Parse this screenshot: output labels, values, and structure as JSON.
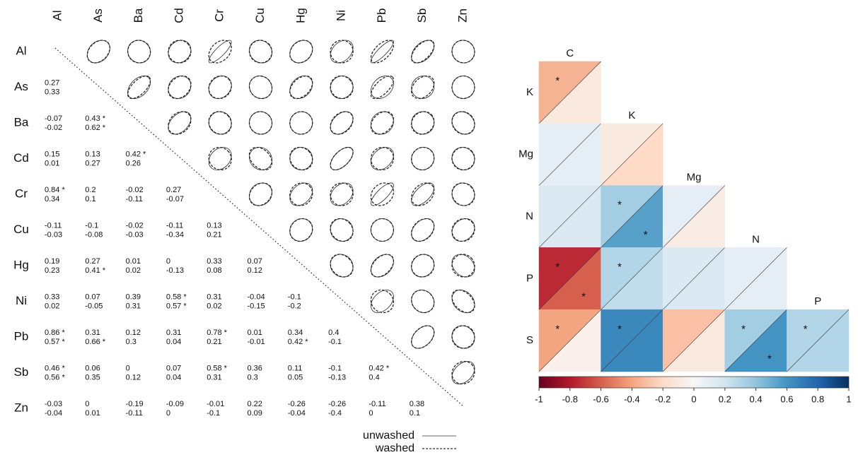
{
  "correlation_matrix": {
    "variables": [
      "Al",
      "As",
      "Ba",
      "Cd",
      "Cr",
      "Cu",
      "Hg",
      "Ni",
      "Pb",
      "Sb",
      "Zn"
    ],
    "series": [
      {
        "name": "unwashed",
        "values": [
          [],
          [
            0.27
          ],
          [
            -0.07,
            0.43
          ],
          [
            0.15,
            0.13,
            0.42
          ],
          [
            0.84,
            0.2,
            -0.02,
            0.27
          ],
          [
            -0.11,
            -0.1,
            -0.02,
            -0.11,
            0.13
          ],
          [
            0.19,
            0.27,
            0.01,
            0,
            0.33,
            0.07
          ],
          [
            0.33,
            0.07,
            0.39,
            0.58,
            0.31,
            -0.04,
            -0.1
          ],
          [
            0.86,
            0.31,
            0.12,
            0.31,
            0.78,
            0.01,
            0.34,
            0.4
          ],
          [
            0.46,
            0.06,
            0,
            0.07,
            0.58,
            0.36,
            0.11,
            -0.1,
            0.42
          ],
          [
            -0.03,
            0,
            -0.19,
            -0.09,
            -0.01,
            0.22,
            -0.26,
            -0.26,
            -0.11,
            0.38
          ]
        ],
        "value_labels": [
          [],
          [
            "0.27"
          ],
          [
            "-0.07",
            "0.43 *"
          ],
          [
            "0.15",
            "0.13",
            "0.42 *"
          ],
          [
            "0.84 *",
            "0.2",
            "-0.02",
            "0.27"
          ],
          [
            "-0.11",
            "-0.1",
            "-0.02",
            "-0.11",
            "0.13"
          ],
          [
            "0.19",
            "0.27",
            "0.01",
            "0",
            "0.33",
            "0.07"
          ],
          [
            "0.33",
            "0.07",
            "0.39",
            "0.58 *",
            "0.31",
            "-0.04",
            "-0.1"
          ],
          [
            "0.86 *",
            "0.31",
            "0.12",
            "0.31",
            "0.78 *",
            "0.01",
            "0.34",
            "0.4"
          ],
          [
            "0.46 *",
            "0.06",
            "0",
            "0.07",
            "0.58 *",
            "0.36",
            "0.11",
            "-0.1",
            "0.42 *"
          ],
          [
            "-0.03",
            "0",
            "-0.19",
            "-0.09",
            "-0.01",
            "0.22",
            "-0.26",
            "-0.26",
            "-0.11",
            "0.38"
          ]
        ]
      },
      {
        "name": "washed",
        "values": [
          [],
          [
            0.33
          ],
          [
            -0.02,
            0.62
          ],
          [
            0.01,
            0.27,
            0.26
          ],
          [
            0.34,
            0.1,
            -0.11,
            -0.07
          ],
          [
            -0.03,
            -0.08,
            -0.03,
            -0.34,
            0.21
          ],
          [
            0.23,
            0.41,
            0.02,
            -0.13,
            0.08,
            0.12
          ],
          [
            0.02,
            -0.05,
            0.31,
            0.57,
            0.02,
            -0.15,
            -0.2
          ],
          [
            0.57,
            0.66,
            0.3,
            0.04,
            0.21,
            -0.01,
            0.42,
            -0.1
          ],
          [
            0.56,
            0.35,
            0.12,
            0.04,
            0.31,
            0.3,
            0.05,
            -0.13,
            0.4
          ],
          [
            -0.04,
            0.01,
            -0.11,
            0,
            -0.1,
            0.09,
            -0.04,
            -0.4,
            0,
            0.1
          ]
        ],
        "value_labels": [
          [],
          [
            "0.33"
          ],
          [
            "-0.02",
            "0.62 *"
          ],
          [
            "0.01",
            "0.27",
            "0.26"
          ],
          [
            "0.34",
            "0.1",
            "-0.11",
            "-0.07"
          ],
          [
            "-0.03",
            "-0.08",
            "-0.03",
            "-0.34",
            "0.21"
          ],
          [
            "0.23",
            "0.41 *",
            "0.02",
            "-0.13",
            "0.08",
            "0.12"
          ],
          [
            "0.02",
            "-0.05",
            "0.31",
            "0.57 *",
            "0.02",
            "-0.15",
            "-0.2"
          ],
          [
            "0.57 *",
            "0.66 *",
            "0.3",
            "0.04",
            "0.21",
            "-0.01",
            "0.42 *",
            "-0.1"
          ],
          [
            "0.56 *",
            "0.35",
            "0.12",
            "0.04",
            "0.31",
            "0.3",
            "0.05",
            "-0.13",
            "0.4"
          ],
          [
            "-0.04",
            "0.01",
            "-0.11",
            "0",
            "-0.1",
            "0.09",
            "-0.04",
            "-0.4",
            "0",
            "0.1"
          ]
        ]
      }
    ]
  },
  "chart_data": {
    "type": "heatmap",
    "rows": [
      "K",
      "Mg",
      "N",
      "P",
      "S"
    ],
    "columns": [
      "C",
      "K",
      "Mg",
      "N",
      "P"
    ],
    "upper": [
      [
        -0.35
      ],
      [
        0.1,
        -0.1
      ],
      [
        0.15,
        0.35,
        0.1
      ],
      [
        -0.75,
        0.3,
        0.15,
        0.1
      ],
      [
        -0.4,
        0.65,
        -0.3,
        0.35,
        0.3
      ]
    ],
    "lower": [
      [
        -0.1
      ],
      [
        0.1,
        -0.2
      ],
      [
        0.15,
        0.55,
        -0.08
      ],
      [
        -0.6,
        0.25,
        0.15,
        0.1
      ],
      [
        -0.05,
        0.65,
        -0.1,
        0.6,
        0.3
      ]
    ],
    "upper_significant": [
      [
        true
      ],
      [
        false,
        false
      ],
      [
        false,
        true,
        false
      ],
      [
        true,
        true,
        false,
        false
      ],
      [
        true,
        true,
        false,
        true,
        true
      ]
    ],
    "lower_significant": [
      [
        false
      ],
      [
        false,
        false
      ],
      [
        false,
        true,
        false
      ],
      [
        true,
        false,
        false,
        false
      ],
      [
        false,
        false,
        false,
        true,
        false
      ]
    ],
    "significance_marker": "*",
    "zlim": [
      -1,
      1
    ],
    "zticks": [
      -1,
      -0.8,
      -0.6,
      -0.4,
      -0.2,
      0,
      0.2,
      0.4,
      0.6,
      0.8,
      1
    ],
    "colormap": [
      "#67001f",
      "#b2182b",
      "#d6604d",
      "#f4a582",
      "#fddbc7",
      "#f7f7f7",
      "#d1e5f0",
      "#92c5de",
      "#4393c3",
      "#2166ac",
      "#053061"
    ]
  }
}
